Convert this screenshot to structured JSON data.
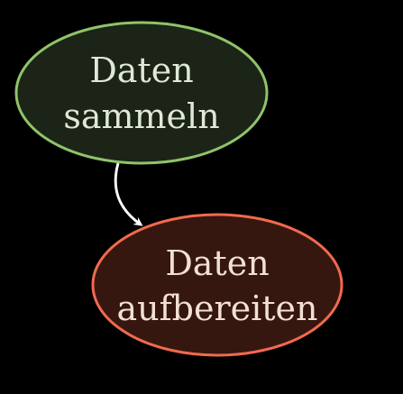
{
  "diagram": {
    "nodes": [
      {
        "id": "collect",
        "lines": [
          "Daten",
          "sammeln"
        ],
        "fill": "#1c2418",
        "stroke": "#8fc46a",
        "text_color": "#dfe9d6"
      },
      {
        "id": "prepare",
        "lines": [
          "Daten",
          "aufbereiten"
        ],
        "fill": "#36170f",
        "stroke": "#f06a4e",
        "text_color": "#f2e0d6"
      }
    ],
    "edges": [
      {
        "from": "collect",
        "to": "prepare",
        "color": "#ffffff"
      }
    ]
  }
}
